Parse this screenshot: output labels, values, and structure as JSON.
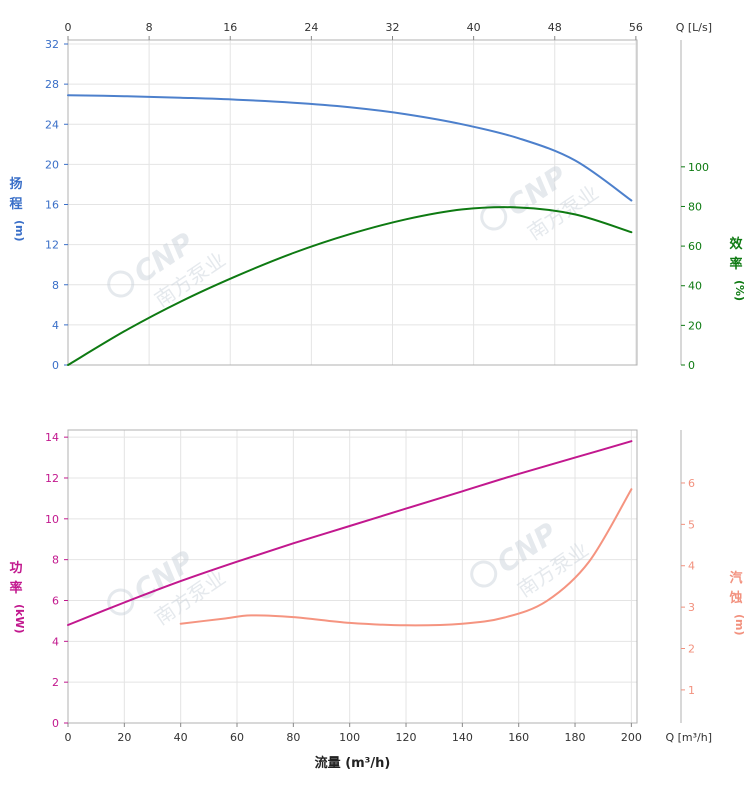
{
  "watermark": {
    "primary": "CNP",
    "secondary": "南方泵业"
  },
  "xlabel": "流量 (m³/h)",
  "chart_data": [
    {
      "type": "line",
      "x_axis": {
        "range": [
          0,
          202
        ]
      },
      "top_axis": {
        "label": "Q [L/s]",
        "ticks": [
          0,
          8,
          16,
          24,
          32,
          40,
          48,
          56
        ],
        "unit_scale": 3.6
      },
      "left_axis": {
        "title": "扬程",
        "unit": "(m)",
        "color": "#3a6fc8",
        "ticks": [
          0,
          4,
          8,
          12,
          16,
          20,
          24,
          28,
          32
        ],
        "range": [
          0,
          32.4
        ]
      },
      "right_axis": {
        "title": "效率",
        "unit": "(%)",
        "color": "#0e7a12",
        "ticks": [
          0,
          20,
          40,
          60,
          80,
          100
        ],
        "range": [
          0,
          164
        ]
      },
      "series": [
        {
          "name": "head",
          "axis": "left",
          "color": "#4d80cc",
          "x": [
            0,
            20,
            40,
            60,
            80,
            100,
            120,
            140,
            160,
            180,
            200
          ],
          "y": [
            26.9,
            26.8,
            26.65,
            26.45,
            26.15,
            25.7,
            25.0,
            24.0,
            22.6,
            20.4,
            16.4
          ]
        },
        {
          "name": "efficiency",
          "axis": "right",
          "color": "#0e7a12",
          "x": [
            0,
            20,
            40,
            60,
            80,
            100,
            120,
            140,
            160,
            180,
            200
          ],
          "y": [
            0,
            17,
            32,
            45,
            56.5,
            66,
            73.5,
            78.5,
            79.5,
            76,
            67
          ]
        }
      ]
    },
    {
      "type": "line",
      "x_axis": {
        "range": [
          0,
          202
        ]
      },
      "bottom_axis": {
        "label": "Q [m³/h]",
        "ticks": [
          0,
          20,
          40,
          60,
          80,
          100,
          120,
          140,
          160,
          180,
          200
        ]
      },
      "left_axis": {
        "title": "功率",
        "unit": "(kW)",
        "color": "#c2188e",
        "ticks": [
          0,
          2,
          4,
          6,
          8,
          10,
          12,
          14
        ],
        "range": [
          0,
          14.35
        ]
      },
      "right_axis": {
        "title": "汽蚀",
        "unit": "(m)",
        "color": "#f2917e",
        "ticks": [
          1,
          2,
          3,
          4,
          5,
          6
        ],
        "range": [
          0.2,
          7.28
        ]
      },
      "series": [
        {
          "name": "power",
          "axis": "left",
          "color": "#c2188e",
          "x": [
            0,
            20,
            40,
            60,
            80,
            100,
            120,
            140,
            160,
            180,
            200
          ],
          "y": [
            4.8,
            5.9,
            6.95,
            7.9,
            8.8,
            9.65,
            10.5,
            11.35,
            12.2,
            13.0,
            13.8
          ]
        },
        {
          "name": "npsh",
          "axis": "right",
          "color": "#f59480",
          "x": [
            40,
            55,
            65,
            80,
            100,
            120,
            140,
            155,
            170,
            185,
            200
          ],
          "y": [
            2.6,
            2.72,
            2.8,
            2.76,
            2.62,
            2.56,
            2.6,
            2.75,
            3.15,
            4.1,
            5.85
          ]
        }
      ]
    }
  ]
}
